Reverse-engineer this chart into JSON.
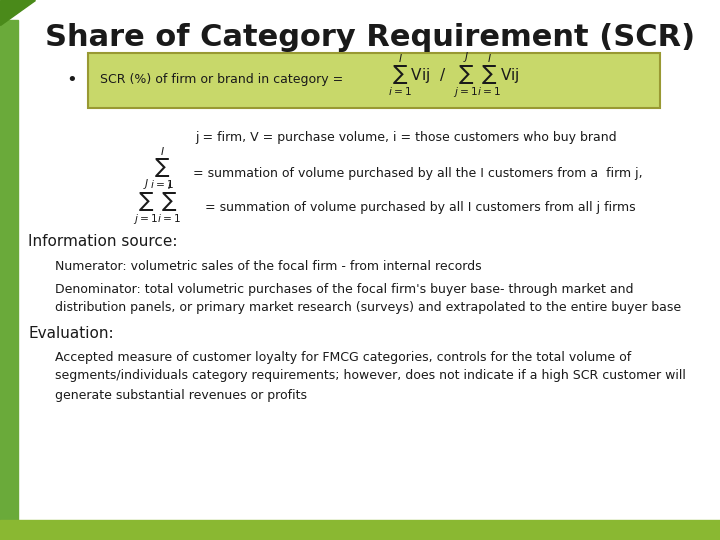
{
  "title": "Share of Category Requirement (SCR)",
  "title_fontsize": 22,
  "title_color": "#1a1a1a",
  "background_color": "#ffffff",
  "left_bar_color": "#6aaa3a",
  "bottom_bar_color": "#8ab832",
  "green_box_color": "#c8d86a",
  "green_box_edge_color": "#999933",
  "bullet_text": "SCR (%) of firm or brand in category =",
  "line1": "j = firm, V = purchase volume, i = those customers who buy brand",
  "line2a_text": "= summation of volume purchased by all the I customers from a  firm j,",
  "line3a_text": "= summation of volume purchased by all I customers from all j firms",
  "info_header": "Information source:",
  "info1": "Numerator: volumetric sales of the focal firm - from internal records",
  "info2a": "Denominator: total volumetric purchases of the focal firm's buyer base- through market and",
  "info2b": "distribution panels, or primary market research (surveys) and extrapolated to the entire buyer base",
  "eval_header": "Evaluation:",
  "eval1a": "Accepted measure of customer loyalty for FMCG categories, controls for the total volume of",
  "eval1b": "segments/individuals category requirements; however, does not indicate if a high SCR customer will",
  "eval1c": "generate substantial revenues or profits",
  "text_color": "#1a1a1a",
  "small_fontsize": 9,
  "medium_fontsize": 10,
  "header_fontsize": 11
}
